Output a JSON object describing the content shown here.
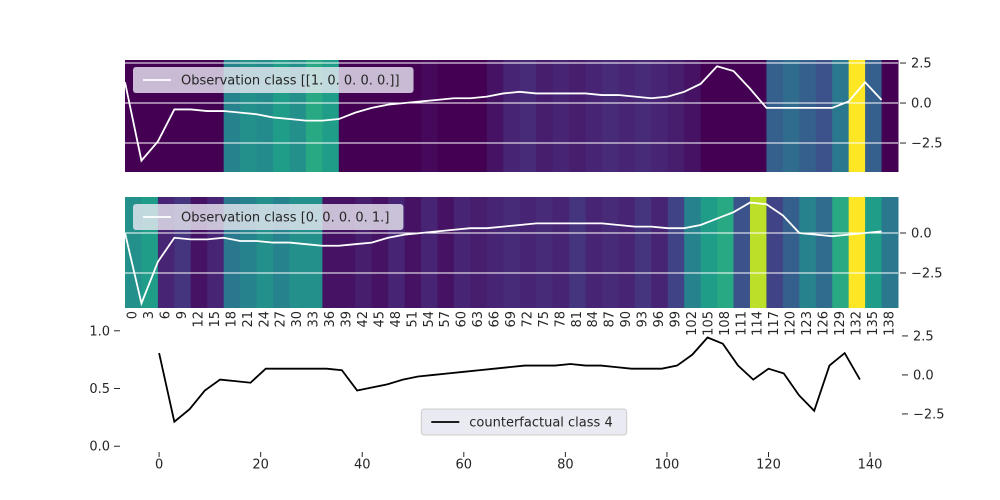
{
  "chart_data": [
    {
      "type": "heatmap",
      "colormap": "viridis",
      "grid": true,
      "legend": "upper left",
      "x": [
        0,
        3,
        6,
        9,
        12,
        15,
        18,
        21,
        24,
        27,
        30,
        33,
        36,
        39,
        42,
        45,
        48,
        51,
        54,
        57,
        60,
        63,
        66,
        69,
        72,
        75,
        78,
        81,
        84,
        87,
        90,
        93,
        96,
        99,
        102,
        105,
        108,
        111,
        114,
        117,
        120,
        123,
        126,
        129,
        132,
        135,
        138
      ],
      "heat": [
        0,
        0,
        0,
        0,
        0,
        0,
        0.45,
        0.5,
        0.48,
        0.55,
        0.5,
        0.6,
        0.55,
        0,
        0,
        0,
        0,
        0,
        0.02,
        0,
        0,
        0,
        0.05,
        0.1,
        0.12,
        0.08,
        0.1,
        0.08,
        0.1,
        0.12,
        0.1,
        0.12,
        0.1,
        0.08,
        0.05,
        0,
        0,
        0,
        0,
        0.3,
        0.35,
        0.3,
        0.25,
        0.4,
        1.0,
        0.3,
        0
      ],
      "series": [
        {
          "name": "Observation class [[1. 0. 0. 0. 0.]]",
          "color": "#ffffff",
          "values": [
            1.3,
            -3.6,
            -2.4,
            -0.4,
            -0.4,
            -0.5,
            -0.5,
            -0.6,
            -0.7,
            -0.9,
            -1.0,
            -1.1,
            -1.1,
            -1.0,
            -0.6,
            -0.3,
            -0.1,
            0.0,
            0.1,
            0.2,
            0.3,
            0.3,
            0.4,
            0.6,
            0.7,
            0.6,
            0.6,
            0.6,
            0.6,
            0.5,
            0.5,
            0.4,
            0.3,
            0.4,
            0.7,
            1.2,
            2.3,
            2.0,
            0.9,
            -0.3,
            -0.3,
            -0.3,
            -0.3,
            -0.3,
            0.1,
            1.3,
            0.2
          ]
        }
      ],
      "xlim": [
        0,
        141
      ],
      "ylim": [
        -4.31,
        2.69
      ],
      "yticks": [
        {
          "value": -2.5,
          "label": "−2.5"
        },
        {
          "value": 0,
          "label": "0.0"
        },
        2.5
      ]
    },
    {
      "type": "heatmap",
      "colormap": "viridis",
      "grid": true,
      "legend": "upper left",
      "x": [
        0,
        3,
        6,
        9,
        12,
        15,
        18,
        21,
        24,
        27,
        30,
        33,
        36,
        39,
        42,
        45,
        48,
        51,
        54,
        57,
        60,
        63,
        66,
        69,
        72,
        75,
        78,
        81,
        84,
        87,
        90,
        93,
        96,
        99,
        102,
        105,
        108,
        111,
        114,
        117,
        120,
        123,
        126,
        129,
        132,
        135,
        138
      ],
      "heat": [
        0.5,
        0.55,
        0.1,
        0.15,
        0.05,
        0.1,
        0.4,
        0.45,
        0.5,
        0.45,
        0.5,
        0.5,
        0.05,
        0.05,
        0.08,
        0.05,
        0.1,
        0.05,
        0.1,
        0.05,
        0.1,
        0.08,
        0.1,
        0.12,
        0.1,
        0.12,
        0.1,
        0.15,
        0.1,
        0.12,
        0.1,
        0.15,
        0.1,
        0.2,
        0.45,
        0.55,
        0.6,
        0.25,
        0.9,
        0.2,
        0.3,
        0.45,
        0.35,
        0.6,
        1.0,
        0.55,
        0.4
      ],
      "series": [
        {
          "name": "Observation class [0. 0. 0. 0. 1.]",
          "color": "#ffffff",
          "values": [
            0,
            -4.4,
            -1.8,
            -0.3,
            -0.4,
            -0.4,
            -0.3,
            -0.5,
            -0.5,
            -0.6,
            -0.6,
            -0.7,
            -0.8,
            -0.8,
            -0.7,
            -0.6,
            -0.3,
            -0.1,
            0.0,
            0.1,
            0.2,
            0.3,
            0.3,
            0.4,
            0.5,
            0.6,
            0.6,
            0.6,
            0.6,
            0.6,
            0.5,
            0.4,
            0.4,
            0.3,
            0.3,
            0.5,
            0.9,
            1.3,
            1.9,
            1.8,
            1.1,
            0.0,
            -0.1,
            -0.2,
            -0.1,
            0.0,
            0.1
          ]
        }
      ],
      "xlim": [
        0,
        141
      ],
      "ylim": [
        -4.69,
        2.25
      ],
      "xticks": [
        0,
        3,
        6,
        9,
        12,
        15,
        18,
        21,
        24,
        27,
        30,
        33,
        36,
        39,
        42,
        45,
        48,
        51,
        54,
        57,
        60,
        63,
        66,
        69,
        72,
        75,
        78,
        81,
        84,
        87,
        90,
        93,
        96,
        99,
        102,
        105,
        108,
        111,
        114,
        117,
        120,
        123,
        126,
        129,
        132,
        135,
        138
      ],
      "yticks": [
        {
          "value": -2.5,
          "label": "−2.5"
        },
        {
          "value": 0,
          "label": "0.0"
        }
      ]
    },
    {
      "type": "line",
      "grid": false,
      "legend": "lower center",
      "x": [
        0,
        3,
        6,
        9,
        12,
        15,
        18,
        21,
        24,
        27,
        30,
        33,
        36,
        39,
        42,
        45,
        48,
        51,
        54,
        57,
        60,
        63,
        66,
        69,
        72,
        75,
        78,
        81,
        84,
        87,
        90,
        93,
        96,
        99,
        102,
        105,
        108,
        111,
        114,
        117,
        120,
        123,
        126,
        129,
        132,
        135,
        138
      ],
      "series": [
        {
          "name": "counterfactual class 4",
          "color": "#000000",
          "axis": "y2",
          "values": [
            1.4,
            -3.0,
            -2.2,
            -1.0,
            -0.3,
            -0.4,
            -0.5,
            0.4,
            0.4,
            0.4,
            0.4,
            0.4,
            0.3,
            -1.0,
            -0.8,
            -0.6,
            -0.3,
            -0.1,
            0.0,
            0.1,
            0.2,
            0.3,
            0.4,
            0.5,
            0.6,
            0.6,
            0.6,
            0.7,
            0.6,
            0.6,
            0.5,
            0.4,
            0.4,
            0.4,
            0.6,
            1.3,
            2.4,
            2.0,
            0.6,
            -0.3,
            0.4,
            0.1,
            -1.3,
            -2.3,
            0.6,
            1.4,
            -0.3
          ]
        }
      ],
      "xlim": [
        -7.7,
        145.5
      ],
      "xticks": [
        0,
        20,
        40,
        60,
        80,
        100,
        120,
        140
      ],
      "ylim": [
        -0.05,
        1.05
      ],
      "yticks": [
        {
          "value": 0,
          "label": "0.0"
        },
        {
          "value": 0.5,
          "label": "0.5"
        },
        {
          "value": 1,
          "label": "1.0"
        }
      ],
      "y2lim": [
        -4.94,
        3.2
      ],
      "y2ticks": [
        {
          "value": -2.5,
          "label": "−2.5"
        },
        {
          "value": 0,
          "label": "0.0"
        },
        2.5
      ]
    }
  ]
}
